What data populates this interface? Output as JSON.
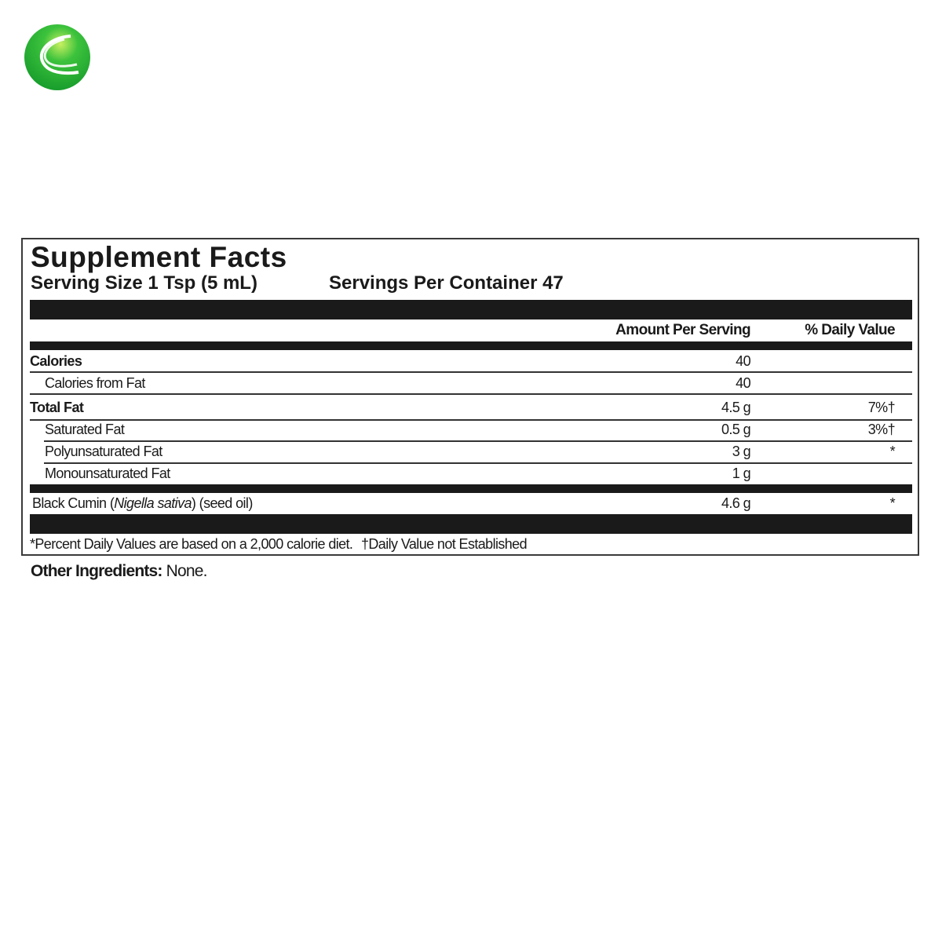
{
  "logo": {
    "icon": "green-globe-logo",
    "color": "#2db52d"
  },
  "facts": {
    "title": "Supplement Facts",
    "serving_size": "Serving Size 1 Tsp (5 mL)",
    "servings_per_container": "Servings Per Container 47",
    "col_amount": "Amount Per Serving",
    "col_dv": "% Daily Value",
    "rows": [
      {
        "label": "Calories",
        "amount": "40",
        "dv": ""
      },
      {
        "label": "Calories from Fat",
        "amount": "40",
        "dv": ""
      },
      {
        "label": "Total Fat",
        "amount": "4.5 g",
        "dv": "7%†"
      },
      {
        "label": "Saturated Fat",
        "amount": "0.5 g",
        "dv": "3%†"
      },
      {
        "label": "Polyunsaturated Fat",
        "amount": "3 g",
        "dv": "*"
      },
      {
        "label": "Monounsaturated Fat",
        "amount": "1 g",
        "dv": ""
      }
    ],
    "ingredient": {
      "name_pre": "Black Cumin (",
      "name_latin": "Nigella sativa",
      "name_post": ") (seed oil)",
      "amount": "4.6 g",
      "dv": "*"
    },
    "footnote_1": "*Percent Daily Values are based on a 2,000 calorie diet.",
    "footnote_2": "†Daily Value not Established"
  },
  "other": {
    "label": "Other Ingredients:",
    "value": " None."
  }
}
